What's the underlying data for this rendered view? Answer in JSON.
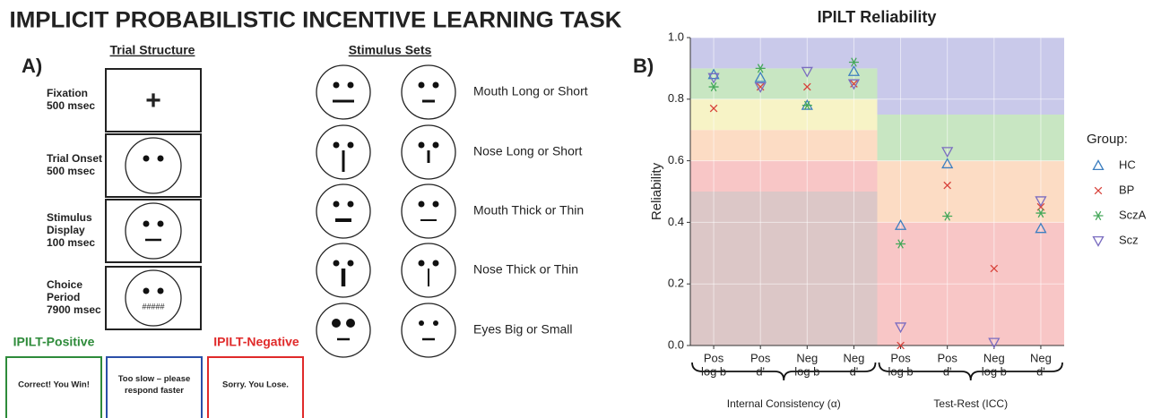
{
  "title": "IMPLICIT PROBABILISTIC INCENTIVE LEARNING TASK",
  "panel_a": {
    "label": "A)",
    "trial_structure": {
      "heading": "Trial Structure",
      "steps": [
        {
          "name_lines": [
            "Fixation",
            "500 msec"
          ],
          "screen_text": "+"
        },
        {
          "name_lines": [
            "Trial Onset",
            "500 msec"
          ]
        },
        {
          "name_lines": [
            "Stimulus",
            "Display",
            "100 msec"
          ]
        },
        {
          "name_lines": [
            "Choice",
            "Period",
            "7900 msec"
          ],
          "screen_text": "#####"
        }
      ]
    },
    "stimulus_sets": {
      "heading": "Stimulus Sets",
      "sets": [
        "Mouth Long or Short",
        "Nose Long or Short",
        "Mouth Thick or Thin",
        "Nose Thick or Thin",
        "Eyes Big or Small"
      ]
    },
    "feedback": {
      "positive_label": "IPILT-Positive",
      "negative_label": "IPILT-Negative",
      "messages": [
        [
          "Correct! You Win!"
        ],
        [
          "Too slow – please",
          "respond faster"
        ],
        [
          "Sorry. You Lose."
        ]
      ]
    }
  },
  "chart_data": {
    "type": "scatter",
    "title": "IPILT Reliability",
    "panel_label": "B)",
    "y_label": "Reliability",
    "categories": [
      [
        "Pos",
        "log b"
      ],
      [
        "Pos",
        "d'"
      ],
      [
        "Neg",
        "log b"
      ],
      [
        "Neg",
        "d'"
      ],
      [
        "Pos",
        "log b"
      ],
      [
        "Pos",
        "d'"
      ],
      [
        "Neg",
        "log b"
      ],
      [
        "Neg",
        "d'"
      ]
    ],
    "groups": [
      {
        "label": "Internal Consistency (α)",
        "bands": [
          {
            "from": 0,
            "to": 0.5,
            "color": "#dcc7c7"
          },
          {
            "from": 0.5,
            "to": 0.6,
            "color": "#f8c6c6"
          },
          {
            "from": 0.6,
            "to": 0.7,
            "color": "#fcdcc4"
          },
          {
            "from": 0.7,
            "to": 0.8,
            "color": "#f7f3c6"
          },
          {
            "from": 0.8,
            "to": 0.9,
            "color": "#c8e6c2"
          },
          {
            "from": 0.9,
            "to": 1.0,
            "color": "#c9c9ea"
          }
        ]
      },
      {
        "label": "Test-Rest (ICC)",
        "bands": [
          {
            "from": 0,
            "to": 0.4,
            "color": "#f8c6c6"
          },
          {
            "from": 0.4,
            "to": 0.6,
            "color": "#fcdcc4"
          },
          {
            "from": 0.6,
            "to": 0.75,
            "color": "#c8e6c2"
          },
          {
            "from": 0.75,
            "to": 1.0,
            "color": "#c9c9ea"
          }
        ]
      }
    ],
    "ylim": [
      0,
      1
    ],
    "yticks": [
      {
        "value": 0,
        "label": "0.0"
      },
      0.2,
      0.4,
      0.6,
      0.8,
      {
        "value": 1,
        "label": "1.0"
      }
    ],
    "grid": true,
    "legend_title": "Group:",
    "legend_position": "right",
    "series": [
      {
        "name": "HC",
        "color": "#3d7fc0",
        "marker": "triangle-up",
        "values": [
          0.88,
          0.87,
          0.78,
          0.89,
          0.39,
          0.59,
          null,
          0.38
        ]
      },
      {
        "name": "BP",
        "color": "#d8433b",
        "marker": "x",
        "values": [
          0.77,
          0.84,
          0.84,
          0.85,
          0.0,
          0.52,
          0.25,
          0.45
        ]
      },
      {
        "name": "SczA",
        "color": "#45a85a",
        "marker": "asterisk",
        "values": [
          0.84,
          0.9,
          0.78,
          0.92,
          0.33,
          0.42,
          null,
          0.43
        ]
      },
      {
        "name": "Scz",
        "color": "#7a6cc0",
        "marker": "triangle-down",
        "values": [
          0.87,
          0.84,
          0.89,
          0.85,
          0.06,
          0.63,
          0.01,
          0.47
        ]
      }
    ]
  }
}
